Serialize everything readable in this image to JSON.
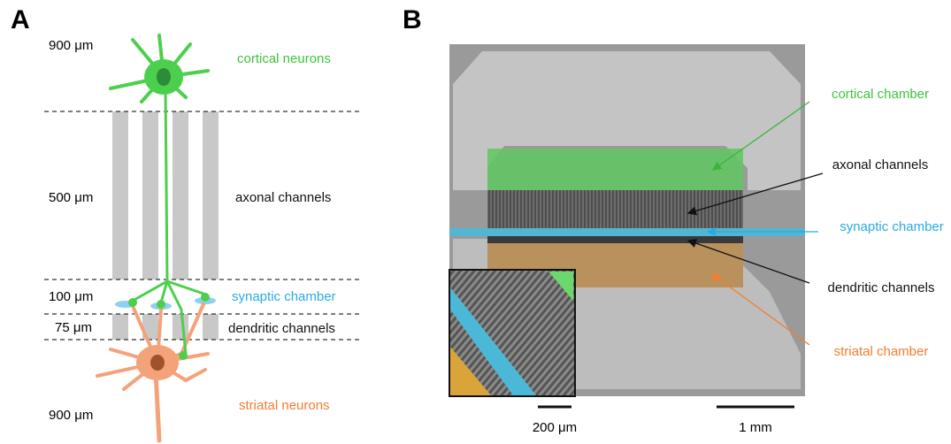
{
  "panels": [
    {
      "label": "A",
      "layers": [
        {
          "size": "900 μm",
          "label": "cortical neurons"
        },
        {
          "size": "500 μm",
          "label": "axonal channels"
        },
        {
          "size": "100 μm",
          "label": "synaptic chamber"
        },
        {
          "size": "75 μm",
          "label": "dendritic channels"
        },
        {
          "size": "900 μm",
          "label": "striatal neurons"
        }
      ]
    },
    {
      "label": "B",
      "annotations": [
        "cortical chamber",
        "axonal channels",
        "synaptic chamber",
        "dendritic channels",
        "striatal chamber"
      ],
      "scale_bars": [
        "200 μm",
        "1 mm"
      ]
    }
  ]
}
